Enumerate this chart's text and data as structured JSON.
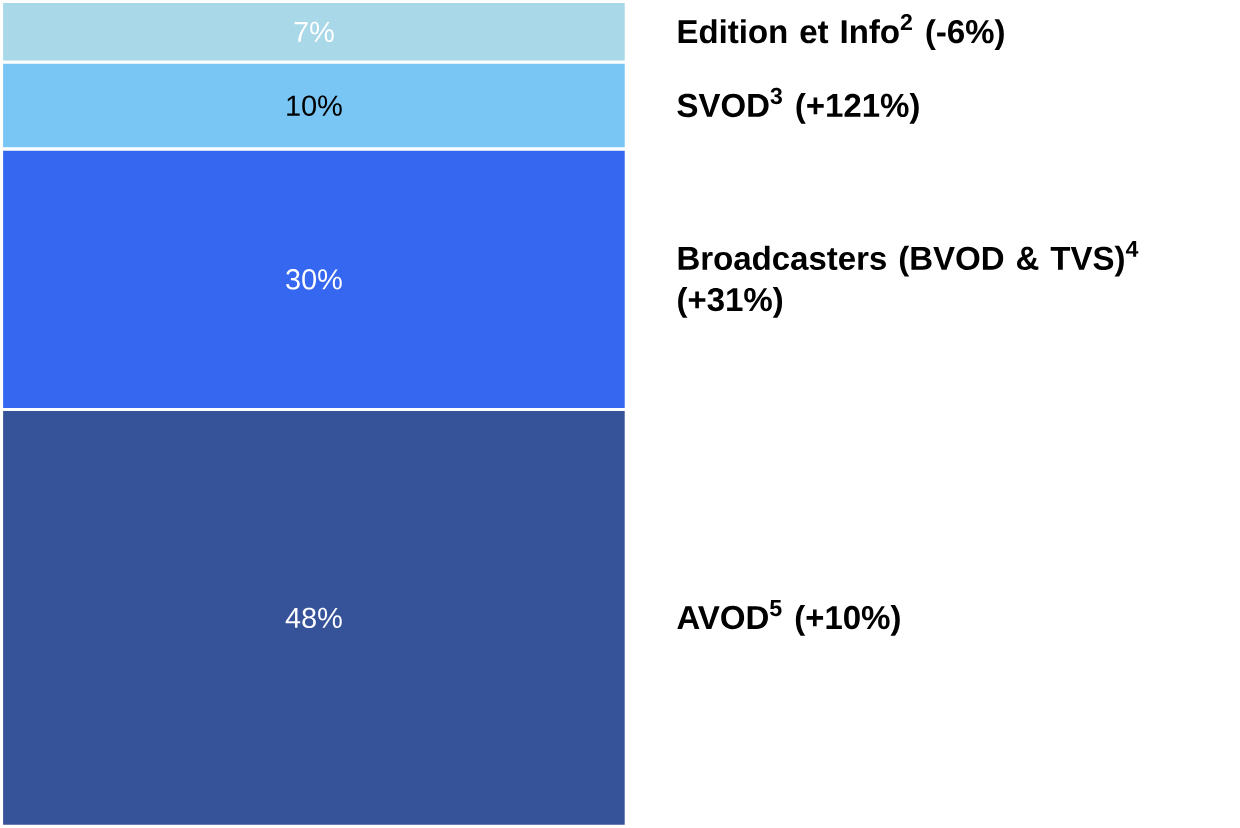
{
  "chart_data": {
    "type": "bar",
    "stacked": true,
    "categories": [
      null
    ],
    "series": [
      {
        "name": "AVOD$^{5}$ (+10%)",
        "color": "#36539a",
        "values": [
          48
        ],
        "value_labels": [
          "48%"
        ]
      },
      {
        "name": "Broadcasters (BVOD & TVS)$^{4}$ (+31%)",
        "color": "#3567f0",
        "values": [
          30
        ],
        "value_labels": [
          "30%"
        ]
      },
      {
        "name": "SVOD$^{3}$ (+121%)",
        "color": "#79c6f5",
        "values": [
          10
        ],
        "value_labels": [
          "10%"
        ]
      },
      {
        "name": "Edition et Info$^{2}$ (-6%)",
        "color": "#a9d8e8",
        "values": [
          7
        ],
        "value_labels": [
          "7%"
        ]
      }
    ]
  }
}
